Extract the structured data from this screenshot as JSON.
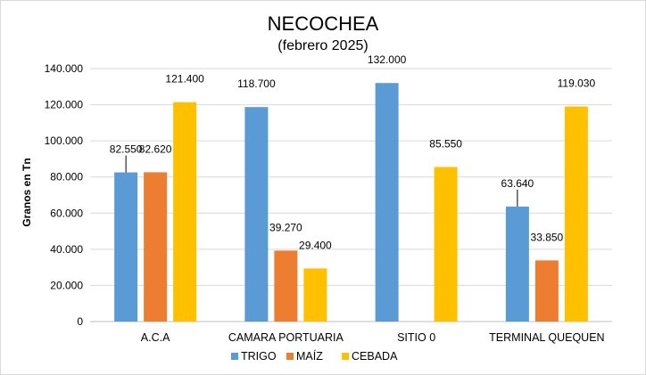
{
  "chart_data": {
    "type": "bar",
    "title": "NECOCHEA",
    "subtitle": "(febrero 2025)",
    "ylabel": "Granos en Tn",
    "xlabel": "",
    "ylim": [
      0,
      140000
    ],
    "yticks": [
      0,
      20000,
      40000,
      60000,
      80000,
      100000,
      120000,
      140000
    ],
    "ytick_labels": [
      "0",
      "20.000",
      "40.000",
      "60.000",
      "80.000",
      "100.000",
      "120.000",
      "140.000"
    ],
    "categories": [
      "A.C.A",
      "CAMARA PORTUARIA",
      "SITIO 0",
      "TERMINAL QUEQUEN"
    ],
    "series": [
      {
        "name": "TRIGO",
        "color": "#5b9bd5",
        "values": [
          82550,
          118700,
          132000,
          63640
        ],
        "labels": [
          "82.550",
          "118.700",
          "132.000",
          "63.640"
        ]
      },
      {
        "name": "MAÍZ",
        "color": "#ed7d31",
        "values": [
          82620,
          39270,
          0,
          33850
        ],
        "labels": [
          "82.620",
          "39.270",
          "",
          "33.850"
        ]
      },
      {
        "name": "CEBADA",
        "color": "#ffc000",
        "values": [
          121400,
          29400,
          85550,
          119030
        ],
        "labels": [
          "121.400",
          "29.400",
          "85.550",
          "119.030"
        ]
      }
    ],
    "grid": true,
    "legend_position": "bottom"
  }
}
